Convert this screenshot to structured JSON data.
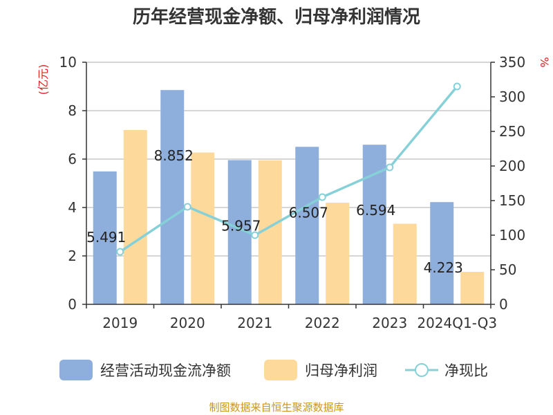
{
  "chart_data": {
    "type": "bar",
    "title": "历年经营现金净额、归母净利润情况",
    "categories": [
      "2019",
      "2020",
      "2021",
      "2022",
      "2023",
      "2024Q1-Q3"
    ],
    "y_left": {
      "unit": "(亿元)",
      "range": [
        0,
        10
      ],
      "ticks": [
        "0",
        "2",
        "4",
        "6",
        "8",
        "10"
      ]
    },
    "y_right": {
      "unit": "%",
      "range": [
        0,
        350
      ],
      "ticks": [
        "0",
        "50",
        "100",
        "150",
        "200",
        "250",
        "300",
        "350"
      ]
    },
    "series": [
      {
        "name": "经营活动现金流净额",
        "type": "bar",
        "axis": "left",
        "color": "#8eaedc",
        "values": [
          5.491,
          8.852,
          5.957,
          6.507,
          6.594,
          4.223
        ],
        "labels": [
          "5.491",
          "8.852",
          "5.957",
          "6.507",
          "6.594",
          "4.223"
        ]
      },
      {
        "name": "归母净利润",
        "type": "bar",
        "axis": "left",
        "color": "#fdd99b",
        "values": [
          7.2,
          6.27,
          5.95,
          4.2,
          3.33,
          1.34
        ]
      },
      {
        "name": "净现比",
        "type": "line",
        "axis": "right",
        "color": "#86d0d8",
        "values": [
          76,
          141,
          100,
          155,
          198,
          315
        ]
      }
    ],
    "legend_position": "bottom",
    "grid": true
  },
  "source": "制图数据来自恒生聚源数据库"
}
